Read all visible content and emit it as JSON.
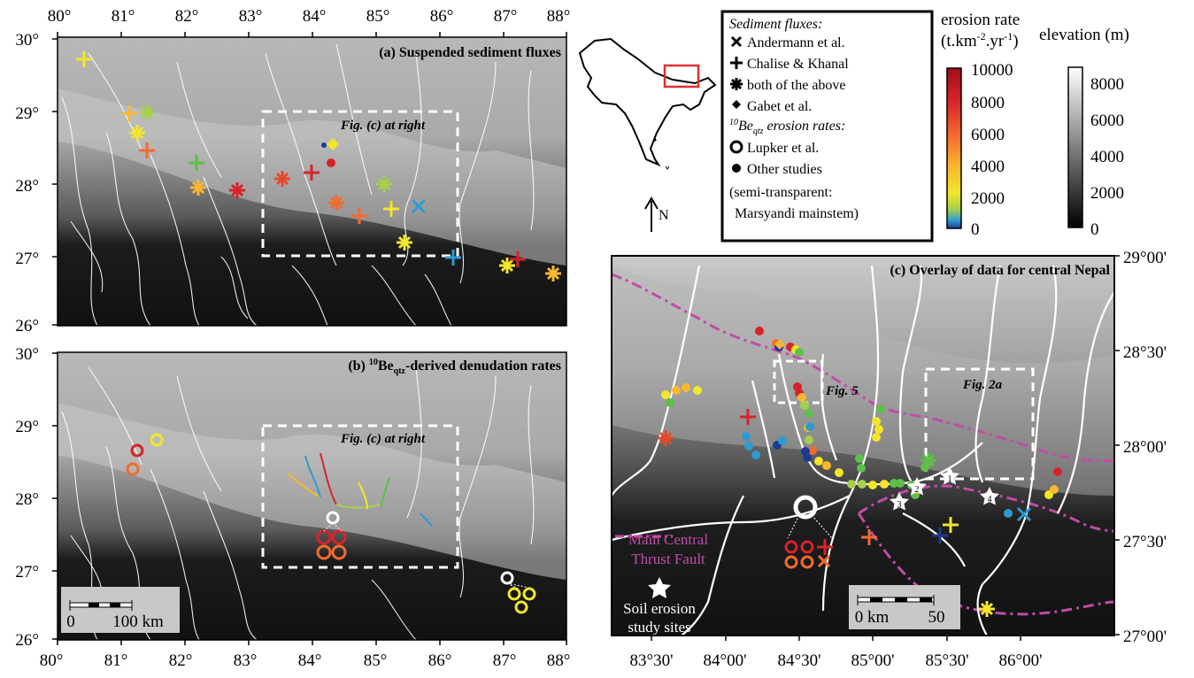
{
  "panels": {
    "a": {
      "title": "(a) Suspended sediment fluxes",
      "box_label": "Fig. (c) at right"
    },
    "b": {
      "title_pre": "(b) ",
      "title_sup": "10",
      "title_be": "Be",
      "title_sub": "qtz",
      "title_post": "-derived denudation rates",
      "box_label": "Fig. (c) at right",
      "scale_left": "0",
      "scale_right": "100 km"
    },
    "c": {
      "title": "(c) Overlay of data for central Nepal",
      "fig5_label": "Fig. 5",
      "fig2a_label": "Fig. 2a",
      "mct_line1": "Main Central",
      "mct_line2": "Thrust Fault",
      "soil_line1": "Soil erosion",
      "soil_line2": "study sites",
      "scale_left": "0 km",
      "scale_right": "50",
      "site_numbers": [
        "1",
        "2",
        "3",
        "4"
      ]
    }
  },
  "axes": {
    "top_lon": [
      "80°",
      "81°",
      "82°",
      "83°",
      "84°",
      "85°",
      "86°",
      "87°",
      "88°"
    ],
    "bottom_lon": [
      "80°",
      "81°",
      "82°",
      "83°",
      "84°",
      "85°",
      "86°",
      "87°",
      "88°"
    ],
    "left_lat_a": [
      "30°",
      "29°",
      "28°",
      "27°",
      "26°"
    ],
    "left_lat_b": [
      "30°",
      "29°",
      "28°",
      "27°",
      "26°"
    ],
    "c_lon": [
      "83°30'",
      "84°00'",
      "84°30'",
      "85°00'",
      "85°30'",
      "86°00'"
    ],
    "c_lat": [
      "29°00'",
      "28°30'",
      "28°00'",
      "27°30'",
      "27°00'"
    ]
  },
  "legend": {
    "header1": "Sediment fluxes:",
    "items1": [
      "Andermann et al.",
      "Chalise & Khanal",
      "both of the above",
      "Gabet et al."
    ],
    "header2_sup": "10",
    "header2_be": "Be",
    "header2_sub": "qtz",
    "header2_post": " erosion rates:",
    "items2": [
      "Lupker et al.",
      "Other studies"
    ],
    "note1": "(semi-transparent:",
    "note2": "Marsyandi mainstem)"
  },
  "north": "N",
  "erosion_bar": {
    "title1": "erosion rate",
    "title2_pre": "(t.km",
    "title2_sup1": "-2",
    "title2_mid": ".yr",
    "title2_sup2": "-1",
    "title2_post": ")",
    "ticks": [
      "10000",
      "8000",
      "6000",
      "4000",
      "2000",
      "0"
    ],
    "colors": [
      "#9e0f1a",
      "#d6232a",
      "#f36b2c",
      "#f9b830",
      "#f2e62a",
      "#a6d04a",
      "#2d9bd3",
      "#1d3a8f"
    ]
  },
  "elevation_bar": {
    "title": "elevation (m)",
    "ticks": [
      "8000",
      "6000",
      "4000",
      "2000",
      "0"
    ]
  }
}
